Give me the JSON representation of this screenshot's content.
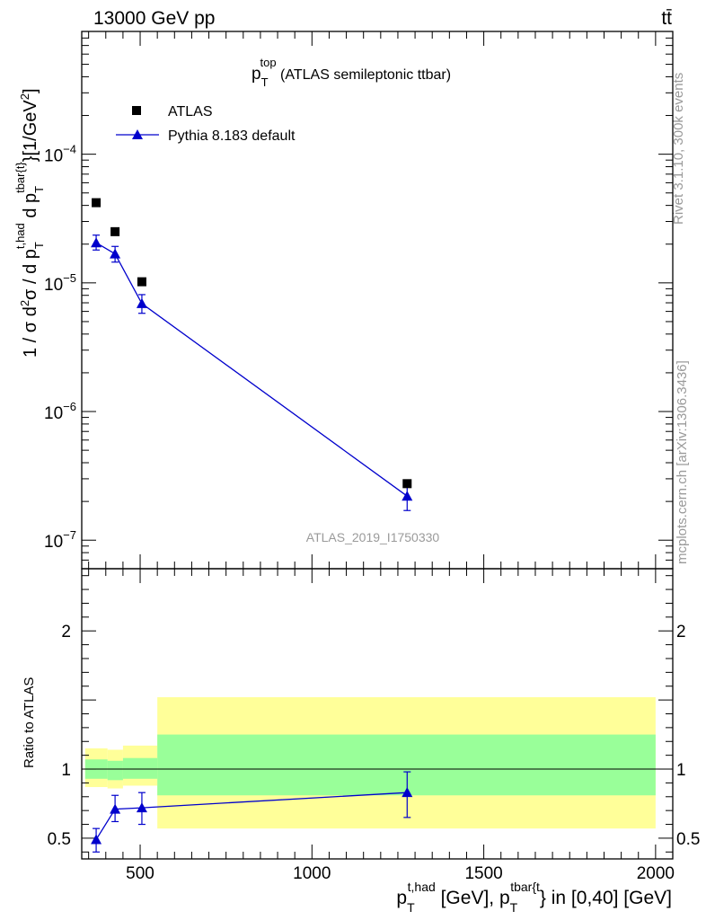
{
  "header": {
    "left_title": "13000 GeV pp",
    "right_title": "tt̄"
  },
  "side_labels": {
    "rivet": "Rivet 3.1.10,  300k events",
    "mcplots": "mcplots.cern.ch [arXiv:1306.3436]"
  },
  "watermark": "ATLAS_2019_I1750330",
  "chart_data": [
    {
      "type": "scatter",
      "title": {
        "base": "p",
        "sub": "T",
        "sup": "top",
        "rest": " (ATLAS semileptonic ttbar)"
      },
      "ylabel": "1 / σ d²σ / d p_T^{t,had} d p_T^{tbar{t}} [1/GeV²]",
      "ylabel_parts": {
        "pre": "1 / σ d",
        "sup2a": "2",
        "mid": "σ / d p",
        "subT1": "T",
        "supHad": "t,had",
        "mid2": " d p",
        "subT2": "T",
        "supTbar": "tbar{t}",
        "post": "}[1/GeV",
        "sup2b": "2",
        "close": "]"
      },
      "yscale": "log",
      "ylim": [
        6e-08,
        0.0009
      ],
      "xlim": [
        330,
        2050
      ],
      "y_ticks": [
        {
          "value": 0.0001,
          "label_base": "10",
          "label_exp": "−4"
        },
        {
          "value": 1e-05,
          "label_base": "10",
          "label_exp": "−5"
        },
        {
          "value": 1e-06,
          "label_base": "10",
          "label_exp": "−6"
        },
        {
          "value": 1e-07,
          "label_base": "10",
          "label_exp": "−7"
        }
      ],
      "legend_position": "top-left",
      "series": [
        {
          "name": "ATLAS",
          "marker": "square",
          "color": "#000000",
          "points": [
            {
              "x": 372,
              "y": 4.2e-05
            },
            {
              "x": 427,
              "y": 2.5e-05
            },
            {
              "x": 505,
              "y": 1.02e-05
            },
            {
              "x": 1277,
              "y": 2.75e-07
            }
          ]
        },
        {
          "name": "Pythia 8.183 default",
          "marker": "triangle",
          "color": "#0000cc",
          "points": [
            {
              "x": 372,
              "y": 2.05e-05,
              "ylo": 1.8e-05,
              "yhi": 2.35e-05
            },
            {
              "x": 427,
              "y": 1.68e-05,
              "ylo": 1.45e-05,
              "yhi": 1.92e-05
            },
            {
              "x": 505,
              "y": 6.9e-06,
              "ylo": 5.8e-06,
              "yhi": 8.1e-06
            },
            {
              "x": 1277,
              "y": 2.2e-07,
              "ylo": 1.7e-07,
              "yhi": 2.6e-07
            }
          ]
        }
      ]
    },
    {
      "type": "scatter",
      "ylabel": "Ratio to ATLAS",
      "ylim": [
        0.35,
        2.45
      ],
      "xlim": [
        330,
        2050
      ],
      "y_ticks": [
        {
          "value": 0.5,
          "label": "0.5"
        },
        {
          "value": 1,
          "label": "1"
        },
        {
          "value": 2,
          "label": "2"
        }
      ],
      "x_ticks": [
        {
          "value": 500,
          "label": "500"
        },
        {
          "value": 1000,
          "label": "1000"
        },
        {
          "value": 1500,
          "label": "1500"
        },
        {
          "value": 2000,
          "label": "2000"
        }
      ],
      "xlabel_parts": {
        "p1": "p",
        "s1": "T",
        "u1": "t,had",
        "mid": " [GeV], p",
        "s2": "T",
        "u2": "tbar{t",
        "post": "} in [0,40] [GeV]"
      },
      "reference_line": 1,
      "bands": [
        {
          "xlo": 340,
          "xhi": 405,
          "yellow": [
            0.87,
            1.15
          ],
          "green": [
            0.93,
            1.07
          ]
        },
        {
          "xlo": 405,
          "xhi": 450,
          "yellow": [
            0.86,
            1.14
          ],
          "green": [
            0.92,
            1.06
          ]
        },
        {
          "xlo": 450,
          "xhi": 550,
          "yellow": [
            0.88,
            1.17
          ],
          "green": [
            0.93,
            1.08
          ]
        },
        {
          "xlo": 550,
          "xhi": 2000,
          "yellow": [
            0.57,
            1.52
          ],
          "green": [
            0.81,
            1.25
          ]
        }
      ],
      "series": [
        {
          "name": "Pythia 8.183 default",
          "marker": "triangle",
          "color": "#0000cc",
          "points": [
            {
              "x": 372,
              "y": 0.49,
              "ylo": 0.4,
              "yhi": 0.57
            },
            {
              "x": 427,
              "y": 0.71,
              "ylo": 0.62,
              "yhi": 0.81
            },
            {
              "x": 505,
              "y": 0.72,
              "ylo": 0.6,
              "yhi": 0.83
            },
            {
              "x": 1277,
              "y": 0.83,
              "ylo": 0.65,
              "yhi": 0.98
            }
          ]
        }
      ]
    }
  ]
}
